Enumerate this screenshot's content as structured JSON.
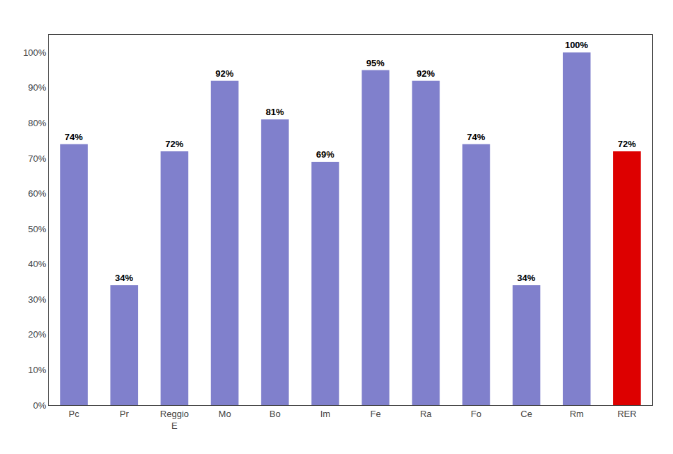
{
  "chart_data": {
    "type": "bar",
    "categories": [
      "Pc",
      "Pr",
      "Reggio\nE",
      "Mo",
      "Bo",
      "Im",
      "Fe",
      "Ra",
      "Fo",
      "Ce",
      "Rm",
      "RER"
    ],
    "values": [
      74,
      34,
      72,
      92,
      81,
      69,
      95,
      92,
      74,
      34,
      100,
      72
    ],
    "value_labels": [
      "74%",
      "34%",
      "72%",
      "92%",
      "81%",
      "69%",
      "95%",
      "92%",
      "74%",
      "34%",
      "100%",
      "72%"
    ],
    "data_labels": true,
    "colors": [
      "#8080cc",
      "#8080cc",
      "#8080cc",
      "#8080cc",
      "#8080cc",
      "#8080cc",
      "#8080cc",
      "#8080cc",
      "#8080cc",
      "#8080cc",
      "#8080cc",
      "#dd0000"
    ],
    "ylim": [
      0,
      105
    ],
    "yticks": [
      {
        "value": 0,
        "label": "0%"
      },
      {
        "value": 10,
        "label": "10%"
      },
      {
        "value": 20,
        "label": "20%"
      },
      {
        "value": 30,
        "label": "30%"
      },
      {
        "value": 40,
        "label": "40%"
      },
      {
        "value": 50,
        "label": "50%"
      },
      {
        "value": 60,
        "label": "60%"
      },
      {
        "value": 70,
        "label": "70%"
      },
      {
        "value": 80,
        "label": "80%"
      },
      {
        "value": 90,
        "label": "90%"
      },
      {
        "value": 100,
        "label": "100%"
      }
    ],
    "grid": false
  }
}
